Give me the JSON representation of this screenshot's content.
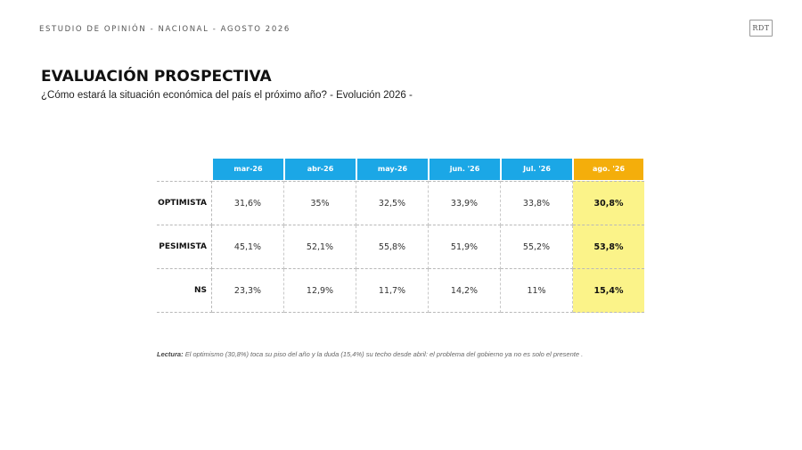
{
  "header": {
    "kicker": "ESTUDIO DE OPINIÓN - NACIONAL - AGOSTO 2026",
    "logo_text": "RDT"
  },
  "slide": {
    "title": "EVALUACIÓN PROSPECTIVA",
    "subtitle": "¿Cómo estará la situación económica del país el próximo año? - Evolución 2026 -"
  },
  "table": {
    "columns": [
      "mar-26",
      "abr-26",
      "may-26",
      "jun. '26",
      "Jul. '26",
      "ago. '26"
    ],
    "highlight_column_index": 5,
    "rows": [
      {
        "label": "OPTIMISTA",
        "values": [
          "31,6%",
          "35%",
          "32,5%",
          "33,9%",
          "33,8%",
          "30,8%"
        ]
      },
      {
        "label": "PESIMISTA",
        "values": [
          "45,1%",
          "52,1%",
          "55,8%",
          "51,9%",
          "55,2%",
          "53,8%"
        ]
      },
      {
        "label": "NS",
        "values": [
          "23,3%",
          "12,9%",
          "11,7%",
          "14,2%",
          "11%",
          "15,4%"
        ]
      }
    ]
  },
  "note": {
    "lead": "Lectura:",
    "text": "El optimismo (30,8%) toca su piso del año y la duda (15,4%) su techo desde abril: el problema del gobierno ya no es solo el presente ."
  },
  "colors": {
    "header_blue": "#1ba7e6",
    "header_highlight": "#f4ae0b",
    "column_highlight": "#fbf389"
  }
}
